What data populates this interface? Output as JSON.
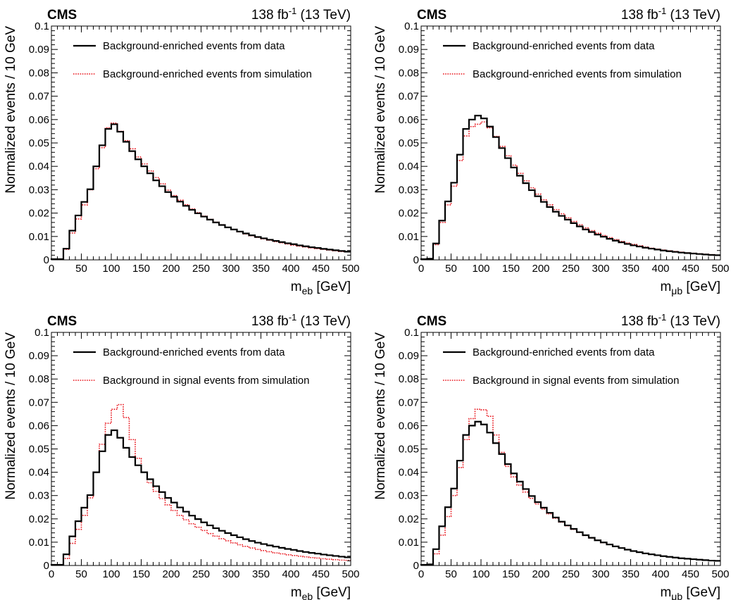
{
  "chart_data": [
    {
      "type": "step-histogram",
      "experiment": "CMS",
      "lumi_main": "138 fb",
      "lumi_exp": "-1",
      "lumi_tail": " (13 TeV)",
      "xlabel_main": "m",
      "xlabel_sub": "eb",
      "xlabel_unit": " [GeV]",
      "ylabel": "Normalized events / 10 GeV",
      "xlim": [
        0,
        500
      ],
      "ylim": [
        0,
        0.1
      ],
      "bin_width": 10,
      "x_ticks": [
        "0",
        "50",
        "100",
        "150",
        "200",
        "250",
        "300",
        "350",
        "400",
        "450",
        "500"
      ],
      "y_ticks": [
        "0",
        "0.01",
        "0.02",
        "0.03",
        "0.04",
        "0.05",
        "0.06",
        "0.07",
        "0.08",
        "0.09",
        "0.1"
      ],
      "legend_placement": "top-left",
      "series": [
        {
          "name": "Background-enriched events from data",
          "color": "#000000",
          "style": "solid",
          "values": [
            0.0003,
            0.0003,
            0.0048,
            0.0125,
            0.019,
            0.0248,
            0.0302,
            0.04,
            0.049,
            0.056,
            0.058,
            0.0548,
            0.0505,
            0.0465,
            0.043,
            0.04,
            0.037,
            0.034,
            0.0315,
            0.029,
            0.027,
            0.0249,
            0.0231,
            0.0214,
            0.0199,
            0.0185,
            0.0172,
            0.016,
            0.0149,
            0.0139,
            0.013,
            0.0121,
            0.0113,
            0.0105,
            0.0098,
            0.0092,
            0.0086,
            0.0081,
            0.0076,
            0.0071,
            0.0067,
            0.0062,
            0.0058,
            0.0054,
            0.0051,
            0.0047,
            0.0044,
            0.0041,
            0.0038,
            0.0035
          ]
        },
        {
          "name": "Background-enriched events from simulation",
          "color": "#e8141c",
          "style": "dotted",
          "values": [
            0.0003,
            0.0003,
            0.0045,
            0.0115,
            0.0175,
            0.0235,
            0.03,
            0.039,
            0.048,
            0.0565,
            0.0585,
            0.055,
            0.051,
            0.0475,
            0.044,
            0.041,
            0.038,
            0.0352,
            0.0325,
            0.0298,
            0.0275,
            0.0255,
            0.0236,
            0.0218,
            0.0202,
            0.0187,
            0.0173,
            0.0161,
            0.015,
            0.0139,
            0.0129,
            0.012,
            0.0111,
            0.0103,
            0.0096,
            0.009,
            0.0084,
            0.0078,
            0.0073,
            0.0068,
            0.0063,
            0.0059,
            0.0055,
            0.0051,
            0.0048,
            0.0045,
            0.0042,
            0.0039,
            0.0036,
            0.0034
          ]
        }
      ]
    },
    {
      "type": "step-histogram",
      "experiment": "CMS",
      "lumi_main": "138 fb",
      "lumi_exp": "-1",
      "lumi_tail": " (13 TeV)",
      "xlabel_main": "m",
      "xlabel_sub": "μb",
      "xlabel_unit": " [GeV]",
      "ylabel": "Normalized events / 10 GeV",
      "xlim": [
        0,
        500
      ],
      "ylim": [
        0,
        0.1
      ],
      "bin_width": 10,
      "x_ticks": [
        "0",
        "50",
        "100",
        "150",
        "200",
        "250",
        "300",
        "350",
        "400",
        "450",
        "500"
      ],
      "y_ticks": [
        "0",
        "0.01",
        "0.02",
        "0.03",
        "0.04",
        "0.05",
        "0.06",
        "0.07",
        "0.08",
        "0.09",
        "0.1"
      ],
      "legend_placement": "top-left",
      "series": [
        {
          "name": "Background-enriched events from data",
          "color": "#000000",
          "style": "solid",
          "values": [
            0.0003,
            0.0005,
            0.007,
            0.0168,
            0.025,
            0.033,
            0.045,
            0.056,
            0.06,
            0.0617,
            0.0605,
            0.057,
            0.0525,
            0.0478,
            0.0435,
            0.0395,
            0.036,
            0.0328,
            0.0298,
            0.0272,
            0.0248,
            0.0226,
            0.0206,
            0.0188,
            0.0172,
            0.0157,
            0.0143,
            0.013,
            0.0119,
            0.0108,
            0.0099,
            0.009,
            0.0082,
            0.0075,
            0.0068,
            0.0062,
            0.0057,
            0.0052,
            0.0048,
            0.0044,
            0.004,
            0.0037,
            0.0034,
            0.0031,
            0.0029,
            0.0027,
            0.0025,
            0.0023,
            0.0021,
            0.002
          ]
        },
        {
          "name": "Background-enriched events from simulation",
          "color": "#e8141c",
          "style": "dotted",
          "values": [
            0.0003,
            0.0005,
            0.0065,
            0.016,
            0.0235,
            0.0315,
            0.0425,
            0.053,
            0.057,
            0.058,
            0.059,
            0.0565,
            0.0528,
            0.0485,
            0.0445,
            0.0405,
            0.037,
            0.0338,
            0.0308,
            0.0281,
            0.0257,
            0.0235,
            0.0215,
            0.0197,
            0.018,
            0.0164,
            0.015,
            0.0137,
            0.0125,
            0.0114,
            0.0104,
            0.0095,
            0.0087,
            0.0079,
            0.0072,
            0.0066,
            0.006,
            0.0055,
            0.005,
            0.0046,
            0.0042,
            0.0039,
            0.0036,
            0.0033,
            0.003,
            0.0028,
            0.0026,
            0.0024,
            0.0022,
            0.002
          ]
        }
      ]
    },
    {
      "type": "step-histogram",
      "experiment": "CMS",
      "lumi_main": "138 fb",
      "lumi_exp": "-1",
      "lumi_tail": " (13 TeV)",
      "xlabel_main": "m",
      "xlabel_sub": "eb",
      "xlabel_unit": " [GeV]",
      "ylabel": "Normalized events / 10 GeV",
      "xlim": [
        0,
        500
      ],
      "ylim": [
        0,
        0.1
      ],
      "bin_width": 10,
      "x_ticks": [
        "0",
        "50",
        "100",
        "150",
        "200",
        "250",
        "300",
        "350",
        "400",
        "450",
        "500"
      ],
      "y_ticks": [
        "0",
        "0.01",
        "0.02",
        "0.03",
        "0.04",
        "0.05",
        "0.06",
        "0.07",
        "0.08",
        "0.09",
        "0.1"
      ],
      "legend_placement": "top-left",
      "series": [
        {
          "name": "Background-enriched events from data",
          "color": "#000000",
          "style": "solid",
          "values": [
            0.0003,
            0.0003,
            0.0048,
            0.0125,
            0.019,
            0.0248,
            0.0302,
            0.04,
            0.049,
            0.056,
            0.058,
            0.0548,
            0.0505,
            0.0465,
            0.043,
            0.04,
            0.037,
            0.034,
            0.0315,
            0.029,
            0.027,
            0.0249,
            0.0231,
            0.0214,
            0.0199,
            0.0185,
            0.0172,
            0.016,
            0.0149,
            0.0139,
            0.013,
            0.0121,
            0.0113,
            0.0105,
            0.0098,
            0.0092,
            0.0086,
            0.0081,
            0.0076,
            0.0071,
            0.0067,
            0.0062,
            0.0058,
            0.0054,
            0.0051,
            0.0047,
            0.0044,
            0.0041,
            0.0038,
            0.0035
          ]
        },
        {
          "name": "Background in signal events from simulation",
          "color": "#e8141c",
          "style": "dotted",
          "values": [
            0.0002,
            0.0002,
            0.003,
            0.0095,
            0.0155,
            0.0215,
            0.029,
            0.04,
            0.052,
            0.061,
            0.067,
            0.069,
            0.0635,
            0.054,
            0.046,
            0.04,
            0.0355,
            0.0318,
            0.0287,
            0.026,
            0.0236,
            0.0215,
            0.0196,
            0.0179,
            0.0164,
            0.015,
            0.0137,
            0.0126,
            0.0115,
            0.0106,
            0.0097,
            0.0089,
            0.0082,
            0.0075,
            0.0069,
            0.0064,
            0.0059,
            0.0054,
            0.005,
            0.0046,
            0.0043,
            0.004,
            0.0037,
            0.0034,
            0.0032,
            0.0029,
            0.0027,
            0.0025,
            0.0023,
            0.0022
          ]
        }
      ]
    },
    {
      "type": "step-histogram",
      "experiment": "CMS",
      "lumi_main": "138 fb",
      "lumi_exp": "-1",
      "lumi_tail": " (13 TeV)",
      "xlabel_main": "m",
      "xlabel_sub": "μb",
      "xlabel_unit": " [GeV]",
      "ylabel": "Normalized events / 10 GeV",
      "xlim": [
        0,
        500
      ],
      "ylim": [
        0,
        0.1
      ],
      "bin_width": 10,
      "x_ticks": [
        "0",
        "50",
        "100",
        "150",
        "200",
        "250",
        "300",
        "350",
        "400",
        "450",
        "500"
      ],
      "y_ticks": [
        "0",
        "0.01",
        "0.02",
        "0.03",
        "0.04",
        "0.05",
        "0.06",
        "0.07",
        "0.08",
        "0.09",
        "0.1"
      ],
      "legend_placement": "top-left",
      "series": [
        {
          "name": "Background-enriched events from data",
          "color": "#000000",
          "style": "solid",
          "values": [
            0.0003,
            0.0005,
            0.007,
            0.0168,
            0.025,
            0.033,
            0.045,
            0.056,
            0.06,
            0.0617,
            0.0605,
            0.057,
            0.0525,
            0.0478,
            0.0435,
            0.0395,
            0.036,
            0.0328,
            0.0298,
            0.0272,
            0.0248,
            0.0226,
            0.0206,
            0.0188,
            0.0172,
            0.0157,
            0.0143,
            0.013,
            0.0119,
            0.0108,
            0.0099,
            0.009,
            0.0082,
            0.0075,
            0.0068,
            0.0062,
            0.0057,
            0.0052,
            0.0048,
            0.0044,
            0.004,
            0.0037,
            0.0034,
            0.0031,
            0.0029,
            0.0027,
            0.0025,
            0.0023,
            0.0021,
            0.002
          ]
        },
        {
          "name": "Background in signal events from simulation",
          "color": "#e8141c",
          "style": "dotted",
          "values": [
            0.0002,
            0.0004,
            0.005,
            0.013,
            0.021,
            0.03,
            0.042,
            0.054,
            0.063,
            0.067,
            0.0668,
            0.064,
            0.056,
            0.0485,
            0.0425,
            0.038,
            0.0345,
            0.0315,
            0.0288,
            0.0264,
            0.0242,
            0.0222,
            0.0203,
            0.0186,
            0.017,
            0.0155,
            0.0142,
            0.0129,
            0.0118,
            0.0108,
            0.0098,
            0.009,
            0.0082,
            0.0075,
            0.0068,
            0.0062,
            0.0057,
            0.0052,
            0.0048,
            0.0044,
            0.004,
            0.0037,
            0.0034,
            0.0031,
            0.0029,
            0.0027,
            0.0025,
            0.0023,
            0.0021,
            0.002
          ]
        }
      ]
    }
  ]
}
